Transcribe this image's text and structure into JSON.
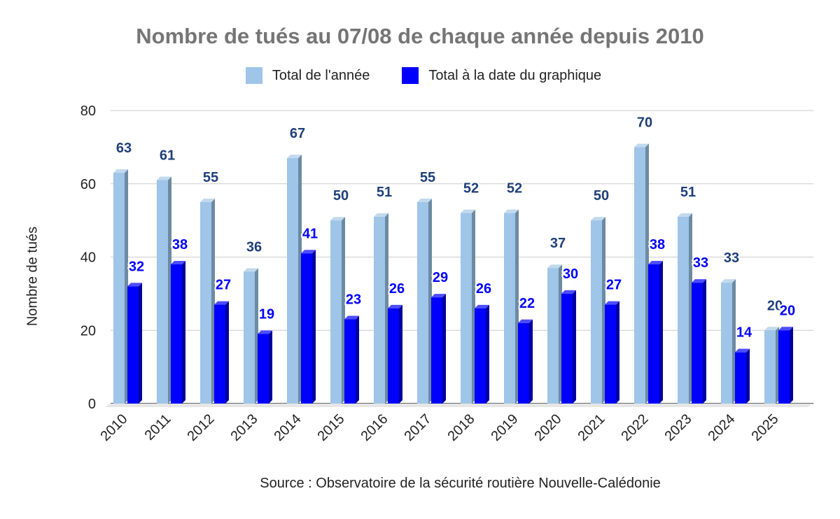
{
  "chart_data": {
    "type": "bar",
    "title": "Nombre de tués au 07/08 de chaque année depuis 2010",
    "xlabel": "",
    "ylabel": "Nombre de tués",
    "ylim": [
      0,
      80
    ],
    "yticks": [
      0,
      20,
      40,
      60,
      80
    ],
    "grid": true,
    "legend_position": "top",
    "categories": [
      "2010",
      "2011",
      "2012",
      "2013",
      "2014",
      "2015",
      "2016",
      "2017",
      "2018",
      "2019",
      "2020",
      "2021",
      "2022",
      "2023",
      "2024",
      "2025"
    ],
    "series": [
      {
        "name": "Total de l'année",
        "color": "#9fc5e8",
        "side_color": "#6d8aa3",
        "top_color": "#c2d9ee",
        "label_color": "#1f3f7a",
        "values": [
          63,
          61,
          55,
          36,
          67,
          50,
          51,
          55,
          52,
          52,
          37,
          50,
          70,
          51,
          33,
          20
        ]
      },
      {
        "name": "Total à la date du graphique",
        "color": "#0000ff",
        "side_color": "#00009e",
        "top_color": "#4d4dff",
        "label_color": "#0000ff",
        "values": [
          32,
          38,
          27,
          19,
          41,
          23,
          26,
          29,
          26,
          22,
          30,
          27,
          38,
          33,
          14,
          20
        ]
      }
    ]
  },
  "source": "Source : Observatoire de la sécurité routière Nouvelle-Calédonie"
}
